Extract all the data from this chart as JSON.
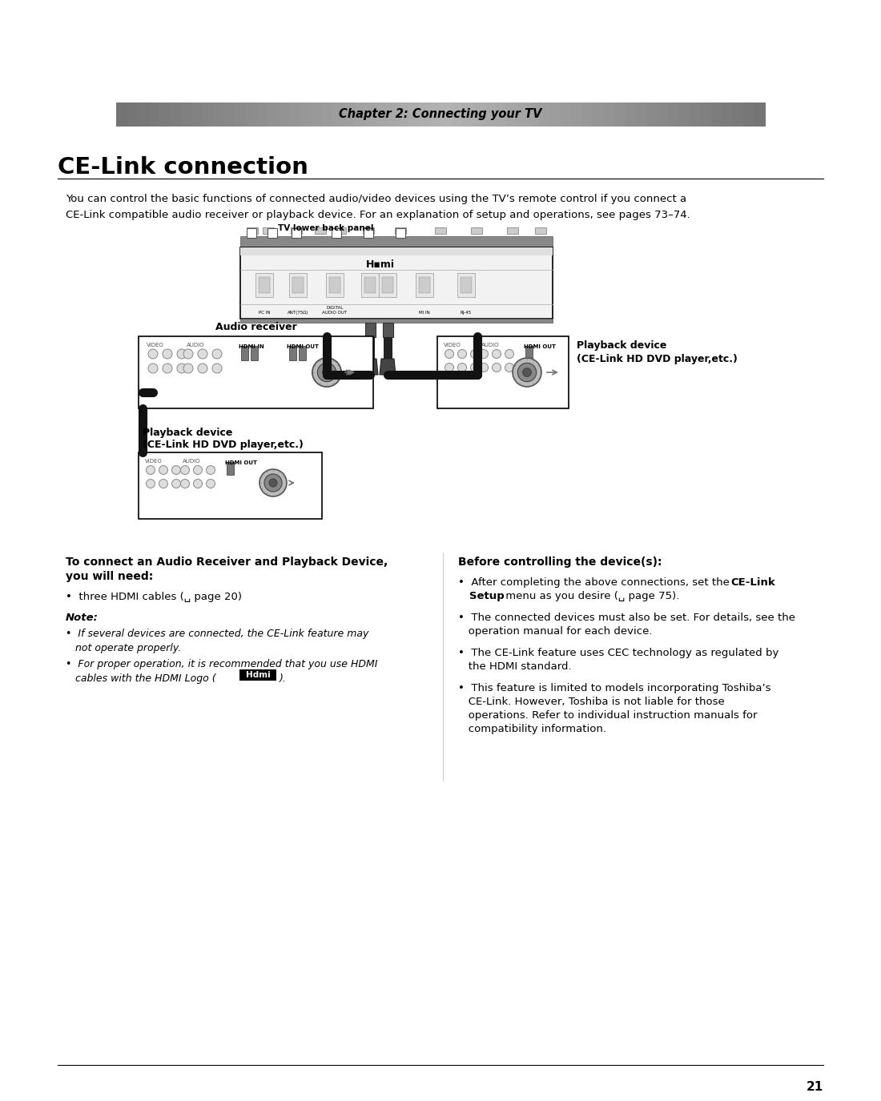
{
  "background_color": "#ffffff",
  "chapter_text": "Chapter 2: Connecting your TV",
  "title": "CE-Link connection",
  "intro_line1": "You can control the basic functions of connected audio/video devices using the TV’s remote control if you connect a",
  "intro_line2": "CE-Link compatible audio receiver or playback device. For an explanation of setup and operations, see pages 73–74.",
  "tv_panel_label": "TV lower back panel",
  "audio_receiver_label": "Audio receiver",
  "playback_top_label1": "Playback device",
  "playback_top_label2": "(CE-Link HD DVD player,etc.)",
  "playback_bot_label1": "Playback device",
  "playback_bot_label2": "(CE-Link HD DVD player,etc.)",
  "left_col_title1": "To connect an Audio Receiver and Playback Device,",
  "left_col_title2": "you will need:",
  "left_bullet_main": "•  three HDMI cables (␣ page 20)",
  "left_note_title": "Note:",
  "left_note1_line1": "•  If several devices are connected, the CE-Link feature may",
  "left_note1_line2": "   not operate properly.",
  "left_note2_line1": "•  For proper operation, it is recommended that you use HDMI",
  "left_note2_line2": "   cables with the HDMI Logo (",
  "hdmi_logo": "Hdmi",
  "hdmi_logo_suffix": ").",
  "right_col_title": "Before controlling the device(s):",
  "right_b1_normal": "•  After completing the above connections, set the ",
  "right_b1_bold": "CE-Link\n   Setup",
  "right_b1_end": " menu as you desire (␣ page 75).",
  "right_b2": "•  The connected devices must also be set. For details, see the\n   operation manual for each device.",
  "right_b3_normal": "•  The CE-Link feature uses ",
  "right_b3_bold": "CEC",
  "right_b3_end": " technology as regulated by\n   the HDMI standard.",
  "right_b4": "•  This feature is limited to models incorporating Toshiba’s\n   CE-Link. However, Toshiba is not liable for those\n   operations. Refer to individual instruction manuals for\n   compatibility information.",
  "page_number": "21",
  "video_label": "VIDEO",
  "audio_label": "AUDIO",
  "hdmi_in_label": "HDMI IN",
  "hdmi_out_label": "HDMI OUT",
  "pc_in_label": "PC IN",
  "ant_label": "ANT(75Ω)",
  "digital_label": "DIGITAL\nAUDIO OUT",
  "mi_in_label": "MI IN",
  "rj45_label": "RJ-45"
}
